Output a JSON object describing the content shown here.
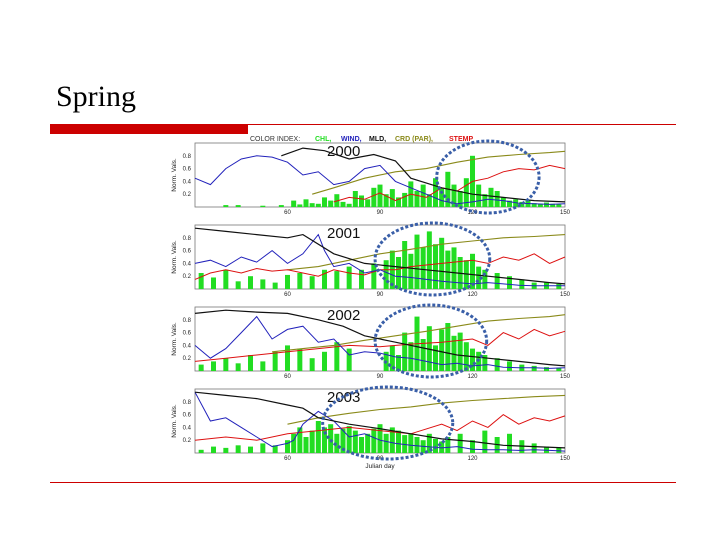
{
  "slide": {
    "title": "Spring"
  },
  "colors": {
    "accent_red": "#cc0000",
    "chl": "#22dd22",
    "wind": "#2222bb",
    "mld": "#111111",
    "crd": "#8a8a1a",
    "stemp": "#dd1111",
    "circle": "#3a5fa8"
  },
  "chart_data": {
    "type": "bar",
    "legend": {
      "prefix": "COLOR INDEX:",
      "entries": [
        {
          "label": "CHL,",
          "color": "#22dd22"
        },
        {
          "label": "WIND,",
          "color": "#2222bb"
        },
        {
          "label": "MLD,",
          "color": "#111111"
        },
        {
          "label": "CRD (PAR),",
          "color": "#8a8a1a"
        },
        {
          "label": "STEMP",
          "color": "#dd1111"
        }
      ]
    },
    "xlabel": "Julian day",
    "ylabel": "Norm. Vals.",
    "xlim": [
      30,
      150
    ],
    "ylim": [
      0,
      1
    ],
    "x_ticks": [
      "60",
      "90",
      "120",
      "150"
    ],
    "y_ticks": [
      "0.2",
      "0.4",
      "0.6",
      "0.8"
    ],
    "panels": [
      {
        "year": "2000",
        "bloom_day_range": [
          111,
          139
        ],
        "chl": {
          "x": [
            40,
            44,
            52,
            58,
            62,
            64,
            66,
            68,
            70,
            72,
            74,
            76,
            78,
            80,
            82,
            84,
            86,
            88,
            90,
            92,
            94,
            96,
            98,
            100,
            102,
            104,
            106,
            108,
            110,
            112,
            114,
            116,
            118,
            120,
            122,
            124,
            126,
            128,
            130,
            132,
            134,
            136,
            138,
            140,
            142,
            144,
            146,
            148
          ],
          "y": [
            0.03,
            0.03,
            0.02,
            0.03,
            0.1,
            0.04,
            0.12,
            0.06,
            0.05,
            0.15,
            0.1,
            0.2,
            0.08,
            0.05,
            0.25,
            0.18,
            0.12,
            0.3,
            0.35,
            0.2,
            0.28,
            0.15,
            0.22,
            0.4,
            0.25,
            0.35,
            0.2,
            0.45,
            0.3,
            0.55,
            0.35,
            0.25,
            0.45,
            0.8,
            0.35,
            0.2,
            0.3,
            0.25,
            0.15,
            0.1,
            0.12,
            0.08,
            0.1,
            0.06,
            0.05,
            0.07,
            0.05,
            0.04
          ]
        },
        "wind": {
          "x": [
            30,
            35,
            40,
            45,
            50,
            55,
            60,
            65,
            70,
            75,
            80,
            85,
            90,
            95,
            100,
            105,
            110,
            115,
            120,
            125,
            130,
            135,
            140,
            145,
            150
          ],
          "y": [
            0.45,
            0.35,
            0.6,
            0.75,
            0.8,
            0.78,
            0.7,
            0.5,
            0.55,
            0.35,
            0.4,
            0.6,
            0.65,
            0.4,
            0.3,
            0.2,
            0.1,
            0.05,
            0.08,
            0.12,
            0.1,
            0.06,
            0.05,
            0.04,
            0.05
          ]
        },
        "mld": {
          "x": [
            58,
            65,
            72,
            80,
            88,
            95,
            100,
            110,
            120,
            130,
            140,
            150
          ],
          "y": [
            0.8,
            0.92,
            0.88,
            0.75,
            0.82,
            0.72,
            0.45,
            0.3,
            0.2,
            0.15,
            0.1,
            0.08
          ]
        },
        "crd": {
          "x": [
            68,
            75,
            85,
            95,
            105,
            115,
            125,
            135,
            145,
            150
          ],
          "y": [
            0.2,
            0.3,
            0.45,
            0.55,
            0.6,
            0.7,
            0.78,
            0.82,
            0.85,
            0.87
          ]
        },
        "stemp": {
          "x": [
            75,
            80,
            85,
            90,
            95,
            100,
            105,
            110,
            115,
            120,
            125,
            130,
            135,
            140,
            145,
            150
          ],
          "y": [
            0.08,
            0.15,
            0.12,
            0.22,
            0.1,
            0.2,
            0.15,
            0.3,
            0.25,
            0.4,
            0.45,
            0.55,
            0.6,
            0.58,
            0.65,
            0.6
          ]
        }
      },
      {
        "year": "2001",
        "bloom_day_range": [
          91,
          123
        ],
        "chl": {
          "x": [
            32,
            36,
            40,
            44,
            48,
            52,
            56,
            60,
            64,
            68,
            72,
            76,
            80,
            84,
            88,
            92,
            94,
            96,
            98,
            100,
            102,
            104,
            106,
            108,
            110,
            112,
            114,
            116,
            118,
            120,
            122,
            124,
            128,
            132,
            136,
            140,
            144,
            148
          ],
          "y": [
            0.25,
            0.18,
            0.3,
            0.12,
            0.2,
            0.15,
            0.1,
            0.22,
            0.25,
            0.2,
            0.3,
            0.28,
            0.35,
            0.3,
            0.4,
            0.45,
            0.6,
            0.5,
            0.75,
            0.55,
            0.85,
            0.65,
            0.9,
            0.7,
            0.8,
            0.6,
            0.65,
            0.5,
            0.45,
            0.55,
            0.35,
            0.3,
            0.25,
            0.2,
            0.15,
            0.1,
            0.1,
            0.08
          ]
        },
        "wind": {
          "x": [
            30,
            35,
            40,
            45,
            50,
            55,
            60,
            65,
            70,
            72,
            75,
            80,
            85,
            90,
            95,
            100,
            105,
            110,
            115,
            120,
            125,
            130,
            135,
            140,
            145,
            150
          ],
          "y": [
            0.4,
            0.45,
            0.35,
            0.5,
            0.42,
            0.6,
            0.4,
            0.55,
            0.85,
            0.6,
            0.35,
            0.4,
            0.25,
            0.3,
            0.2,
            0.18,
            0.15,
            0.12,
            0.1,
            0.08,
            0.1,
            0.08,
            0.06,
            0.05,
            0.05,
            0.05
          ]
        },
        "mld": {
          "x": [
            30,
            40,
            50,
            60,
            65,
            75,
            85,
            95,
            105,
            115,
            125,
            135,
            145,
            150
          ],
          "y": [
            0.95,
            0.9,
            0.85,
            0.8,
            0.85,
            0.55,
            0.4,
            0.35,
            0.3,
            0.25,
            0.2,
            0.15,
            0.1,
            0.08
          ]
        },
        "crd": {
          "x": [
            60,
            70,
            80,
            90,
            100,
            110,
            120,
            130,
            140,
            150
          ],
          "y": [
            0.3,
            0.35,
            0.45,
            0.55,
            0.62,
            0.7,
            0.75,
            0.8,
            0.82,
            0.85
          ]
        },
        "stemp": {
          "x": [
            30,
            35,
            40,
            45,
            50,
            55,
            60,
            65,
            70,
            75,
            80,
            85,
            90,
            95,
            100,
            110,
            120,
            125,
            130,
            135,
            140,
            145,
            150
          ],
          "y": [
            0.15,
            0.25,
            0.3,
            0.25,
            0.32,
            0.28,
            0.3,
            0.25,
            0.2,
            0.3,
            0.25,
            0.22,
            0.3,
            0.3,
            0.35,
            0.4,
            0.45,
            0.4,
            0.5,
            0.45,
            0.55,
            0.4,
            0.5
          ]
        }
      },
      {
        "year": "2002",
        "bloom_day_range": [
          91,
          122
        ],
        "chl": {
          "x": [
            32,
            36,
            40,
            44,
            48,
            52,
            56,
            60,
            64,
            68,
            72,
            76,
            80,
            92,
            94,
            96,
            98,
            100,
            102,
            104,
            106,
            108,
            110,
            112,
            114,
            116,
            118,
            120,
            122,
            124,
            128,
            132,
            136,
            140,
            144,
            148
          ],
          "y": [
            0.1,
            0.15,
            0.2,
            0.12,
            0.25,
            0.15,
            0.3,
            0.4,
            0.35,
            0.2,
            0.3,
            0.45,
            0.35,
            0.3,
            0.4,
            0.25,
            0.6,
            0.45,
            0.85,
            0.5,
            0.7,
            0.4,
            0.65,
            0.75,
            0.55,
            0.6,
            0.45,
            0.35,
            0.3,
            0.25,
            0.2,
            0.15,
            0.1,
            0.08,
            0.06,
            0.05
          ]
        },
        "wind": {
          "x": [
            30,
            35,
            40,
            45,
            50,
            55,
            60,
            65,
            70,
            75,
            80,
            85,
            90,
            95,
            100,
            105,
            110,
            115,
            120,
            125,
            130,
            135,
            140,
            145,
            150
          ],
          "y": [
            0.4,
            0.2,
            0.35,
            0.6,
            0.85,
            0.5,
            0.65,
            0.7,
            0.45,
            0.5,
            0.25,
            0.3,
            0.28,
            0.22,
            0.2,
            0.15,
            0.1,
            0.12,
            0.08,
            0.1,
            0.06,
            0.05,
            0.05,
            0.04,
            0.05
          ]
        },
        "mld": {
          "x": [
            30,
            40,
            50,
            60,
            70,
            78,
            85,
            95,
            105,
            115,
            125,
            135,
            145,
            150
          ],
          "y": [
            0.9,
            0.95,
            0.92,
            0.9,
            0.8,
            0.7,
            0.55,
            0.45,
            0.35,
            0.25,
            0.2,
            0.15,
            0.1,
            0.08
          ]
        },
        "crd": {
          "x": [
            55,
            65,
            75,
            85,
            95,
            105,
            115,
            125,
            135,
            145,
            150
          ],
          "y": [
            0.3,
            0.35,
            0.4,
            0.48,
            0.55,
            0.62,
            0.7,
            0.78,
            0.82,
            0.85,
            0.88
          ]
        },
        "stemp": {
          "x": [
            30,
            40,
            50,
            60,
            70,
            80,
            90,
            100,
            110,
            120,
            125,
            130,
            135,
            140,
            145,
            150
          ],
          "y": [
            0.15,
            0.2,
            0.25,
            0.3,
            0.35,
            0.4,
            0.38,
            0.42,
            0.45,
            0.5,
            0.4,
            0.6,
            0.5,
            0.65,
            0.55,
            0.62
          ]
        }
      },
      {
        "year": "2003",
        "bloom_day_range": [
          74,
          111
        ],
        "chl": {
          "x": [
            32,
            36,
            40,
            44,
            48,
            52,
            56,
            60,
            62,
            64,
            66,
            68,
            70,
            72,
            74,
            76,
            78,
            80,
            82,
            84,
            86,
            88,
            90,
            92,
            94,
            96,
            98,
            100,
            102,
            104,
            106,
            108,
            110,
            112,
            116,
            120,
            124,
            128,
            132,
            136,
            140,
            144,
            148
          ],
          "y": [
            0.05,
            0.1,
            0.08,
            0.12,
            0.1,
            0.15,
            0.12,
            0.2,
            0.3,
            0.4,
            0.25,
            0.35,
            0.5,
            0.4,
            0.45,
            0.3,
            0.38,
            0.42,
            0.35,
            0.25,
            0.3,
            0.38,
            0.45,
            0.3,
            0.4,
            0.35,
            0.28,
            0.3,
            0.25,
            0.2,
            0.3,
            0.22,
            0.18,
            0.25,
            0.3,
            0.2,
            0.35,
            0.25,
            0.3,
            0.2,
            0.15,
            0.1,
            0.08
          ]
        },
        "wind": {
          "x": [
            30,
            35,
            40,
            45,
            50,
            55,
            60,
            62,
            65,
            70,
            75,
            80,
            85,
            90,
            95,
            100,
            105,
            110,
            115,
            120,
            125,
            130,
            135,
            140,
            145,
            150
          ],
          "y": [
            0.95,
            0.5,
            0.55,
            0.4,
            0.25,
            0.1,
            0.15,
            0.2,
            0.45,
            0.65,
            0.5,
            0.25,
            0.3,
            0.2,
            0.15,
            0.12,
            0.1,
            0.08,
            0.1,
            0.06,
            0.05,
            0.05,
            0.04,
            0.05,
            0.04,
            0.03
          ]
        },
        "mld": {
          "x": [
            30,
            40,
            50,
            60,
            65,
            70,
            80,
            90,
            100,
            110,
            120,
            130,
            140,
            150
          ],
          "y": [
            0.95,
            0.9,
            0.85,
            0.75,
            0.7,
            0.55,
            0.45,
            0.38,
            0.3,
            0.22,
            0.18,
            0.12,
            0.1,
            0.08
          ]
        },
        "crd": {
          "x": [
            60,
            70,
            80,
            90,
            100,
            110,
            120,
            130,
            140,
            150
          ],
          "y": [
            0.45,
            0.55,
            0.62,
            0.68,
            0.72,
            0.78,
            0.82,
            0.85,
            0.88,
            0.9
          ]
        },
        "stemp": {
          "x": [
            30,
            40,
            50,
            60,
            70,
            80,
            90,
            100,
            110,
            115,
            120,
            125,
            130,
            135,
            140,
            145,
            150
          ],
          "y": [
            0.2,
            0.25,
            0.2,
            0.3,
            0.35,
            0.4,
            0.35,
            0.3,
            0.45,
            0.35,
            0.5,
            0.4,
            0.6,
            0.45,
            0.55,
            0.5,
            0.58
          ]
        }
      }
    ]
  }
}
